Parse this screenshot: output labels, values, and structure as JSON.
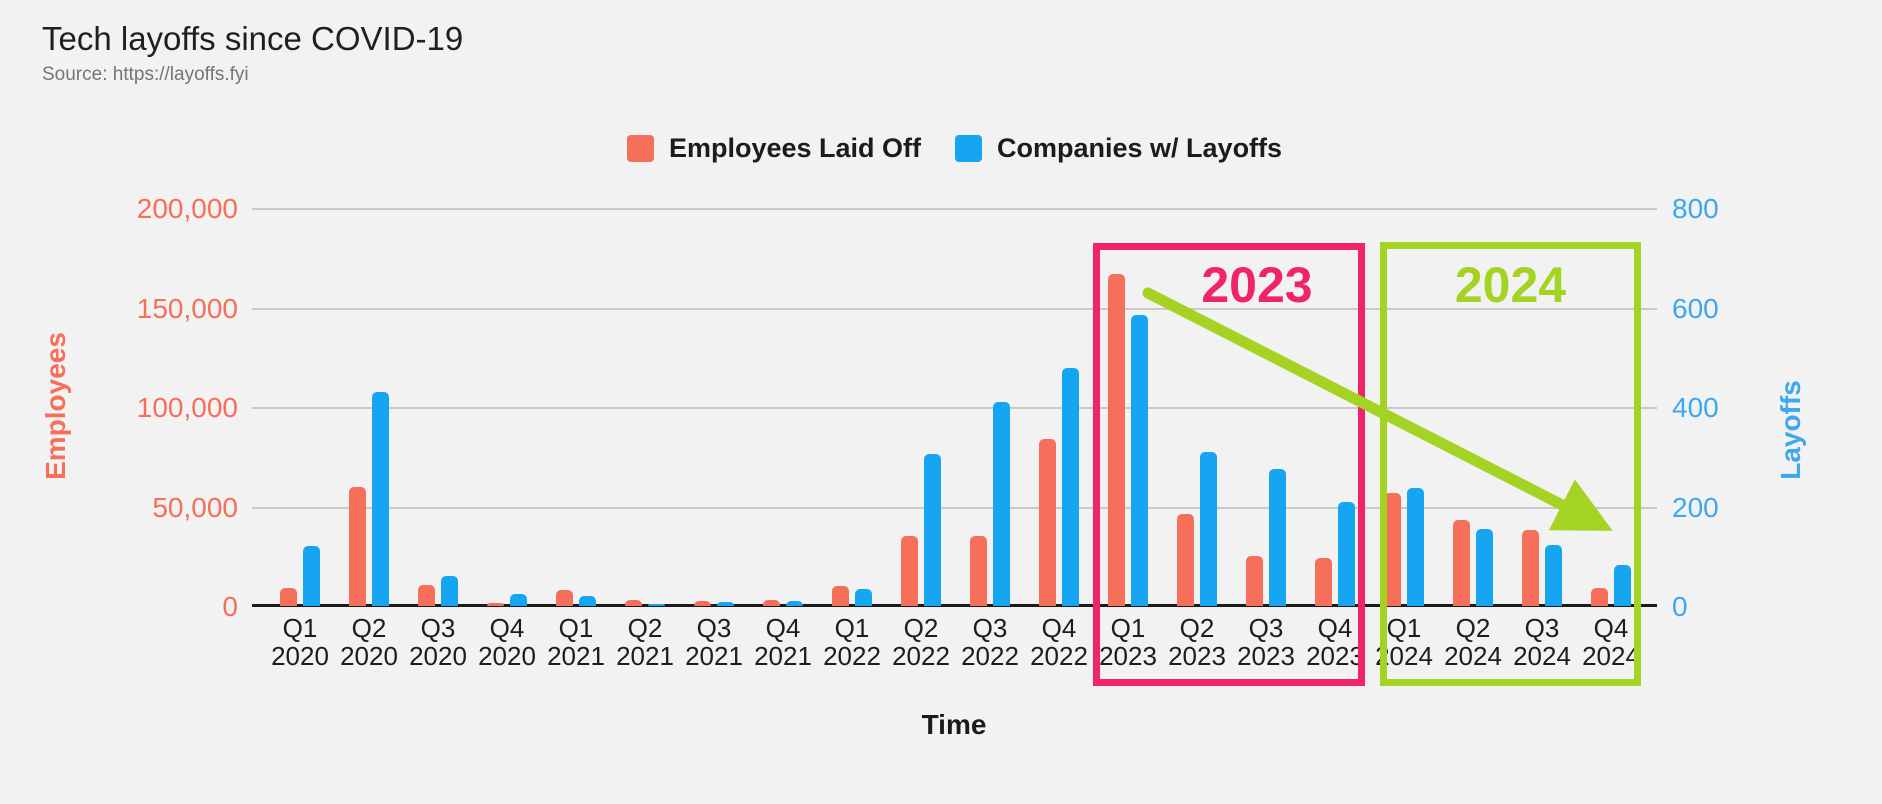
{
  "page": {
    "title": "Tech layoffs since COVID-19",
    "source": "Source: https://layoffs.fyi"
  },
  "legend": {
    "items": [
      {
        "label": "Employees Laid Off",
        "color": "#f56f5b"
      },
      {
        "label": "Companies w/ Layoffs",
        "color": "#16a5f0"
      }
    ]
  },
  "axes": {
    "left": {
      "title": "Employees",
      "color": "#f56f5b",
      "ticks": [
        "200,000",
        "150,000",
        "100,000",
        "50,000",
        "0"
      ]
    },
    "right": {
      "title": "Layoffs",
      "color": "#3da8ee",
      "ticks": [
        "800",
        "600",
        "400",
        "200",
        "0"
      ]
    },
    "x": {
      "title": "Time"
    }
  },
  "annotations": {
    "box_2023": {
      "label": "2023",
      "color": "#f0246b"
    },
    "box_2024": {
      "label": "2024",
      "color": "#a5d324"
    },
    "arrow": {
      "description": "downward trend arrow from Q1 2023 peak to Q4 2024",
      "color": "#a5d324"
    }
  },
  "chart_data": {
    "type": "bar",
    "title": "Tech layoffs since COVID-19",
    "xlabel": "Time",
    "categories": [
      "Q1 2020",
      "Q2 2020",
      "Q3 2020",
      "Q4 2020",
      "Q1 2021",
      "Q2 2021",
      "Q3 2021",
      "Q4 2021",
      "Q1 2022",
      "Q2 2022",
      "Q3 2022",
      "Q4 2022",
      "Q1 2023",
      "Q2 2023",
      "Q3 2023",
      "Q4 2023",
      "Q1 2024",
      "Q2 2024",
      "Q3 2024",
      "Q4 2024"
    ],
    "series": [
      {
        "name": "Employees Laid Off",
        "yaxis": "left",
        "ylabel": "Employees",
        "color": "#f56f5b",
        "values": [
          9000,
          60000,
          10500,
          1500,
          8000,
          3000,
          2500,
          3000,
          10000,
          35000,
          35000,
          84000,
          167000,
          46000,
          25000,
          24000,
          57000,
          43000,
          38000,
          9000
        ]
      },
      {
        "name": "Companies w/ Layoffs",
        "yaxis": "right",
        "ylabel": "Layoffs",
        "color": "#16a5f0",
        "values": [
          120,
          430,
          61,
          24,
          20,
          5,
          8,
          10,
          35,
          305,
          410,
          478,
          585,
          310,
          275,
          210,
          237,
          155,
          122,
          82
        ]
      }
    ],
    "left_ylim": [
      0,
      200000
    ],
    "right_ylim": [
      0,
      800
    ],
    "left_tick_values": [
      200000,
      150000,
      100000,
      50000,
      0
    ],
    "right_tick_values": [
      800,
      600,
      400,
      200,
      0
    ],
    "gridlines": true,
    "legend_position": "top"
  }
}
